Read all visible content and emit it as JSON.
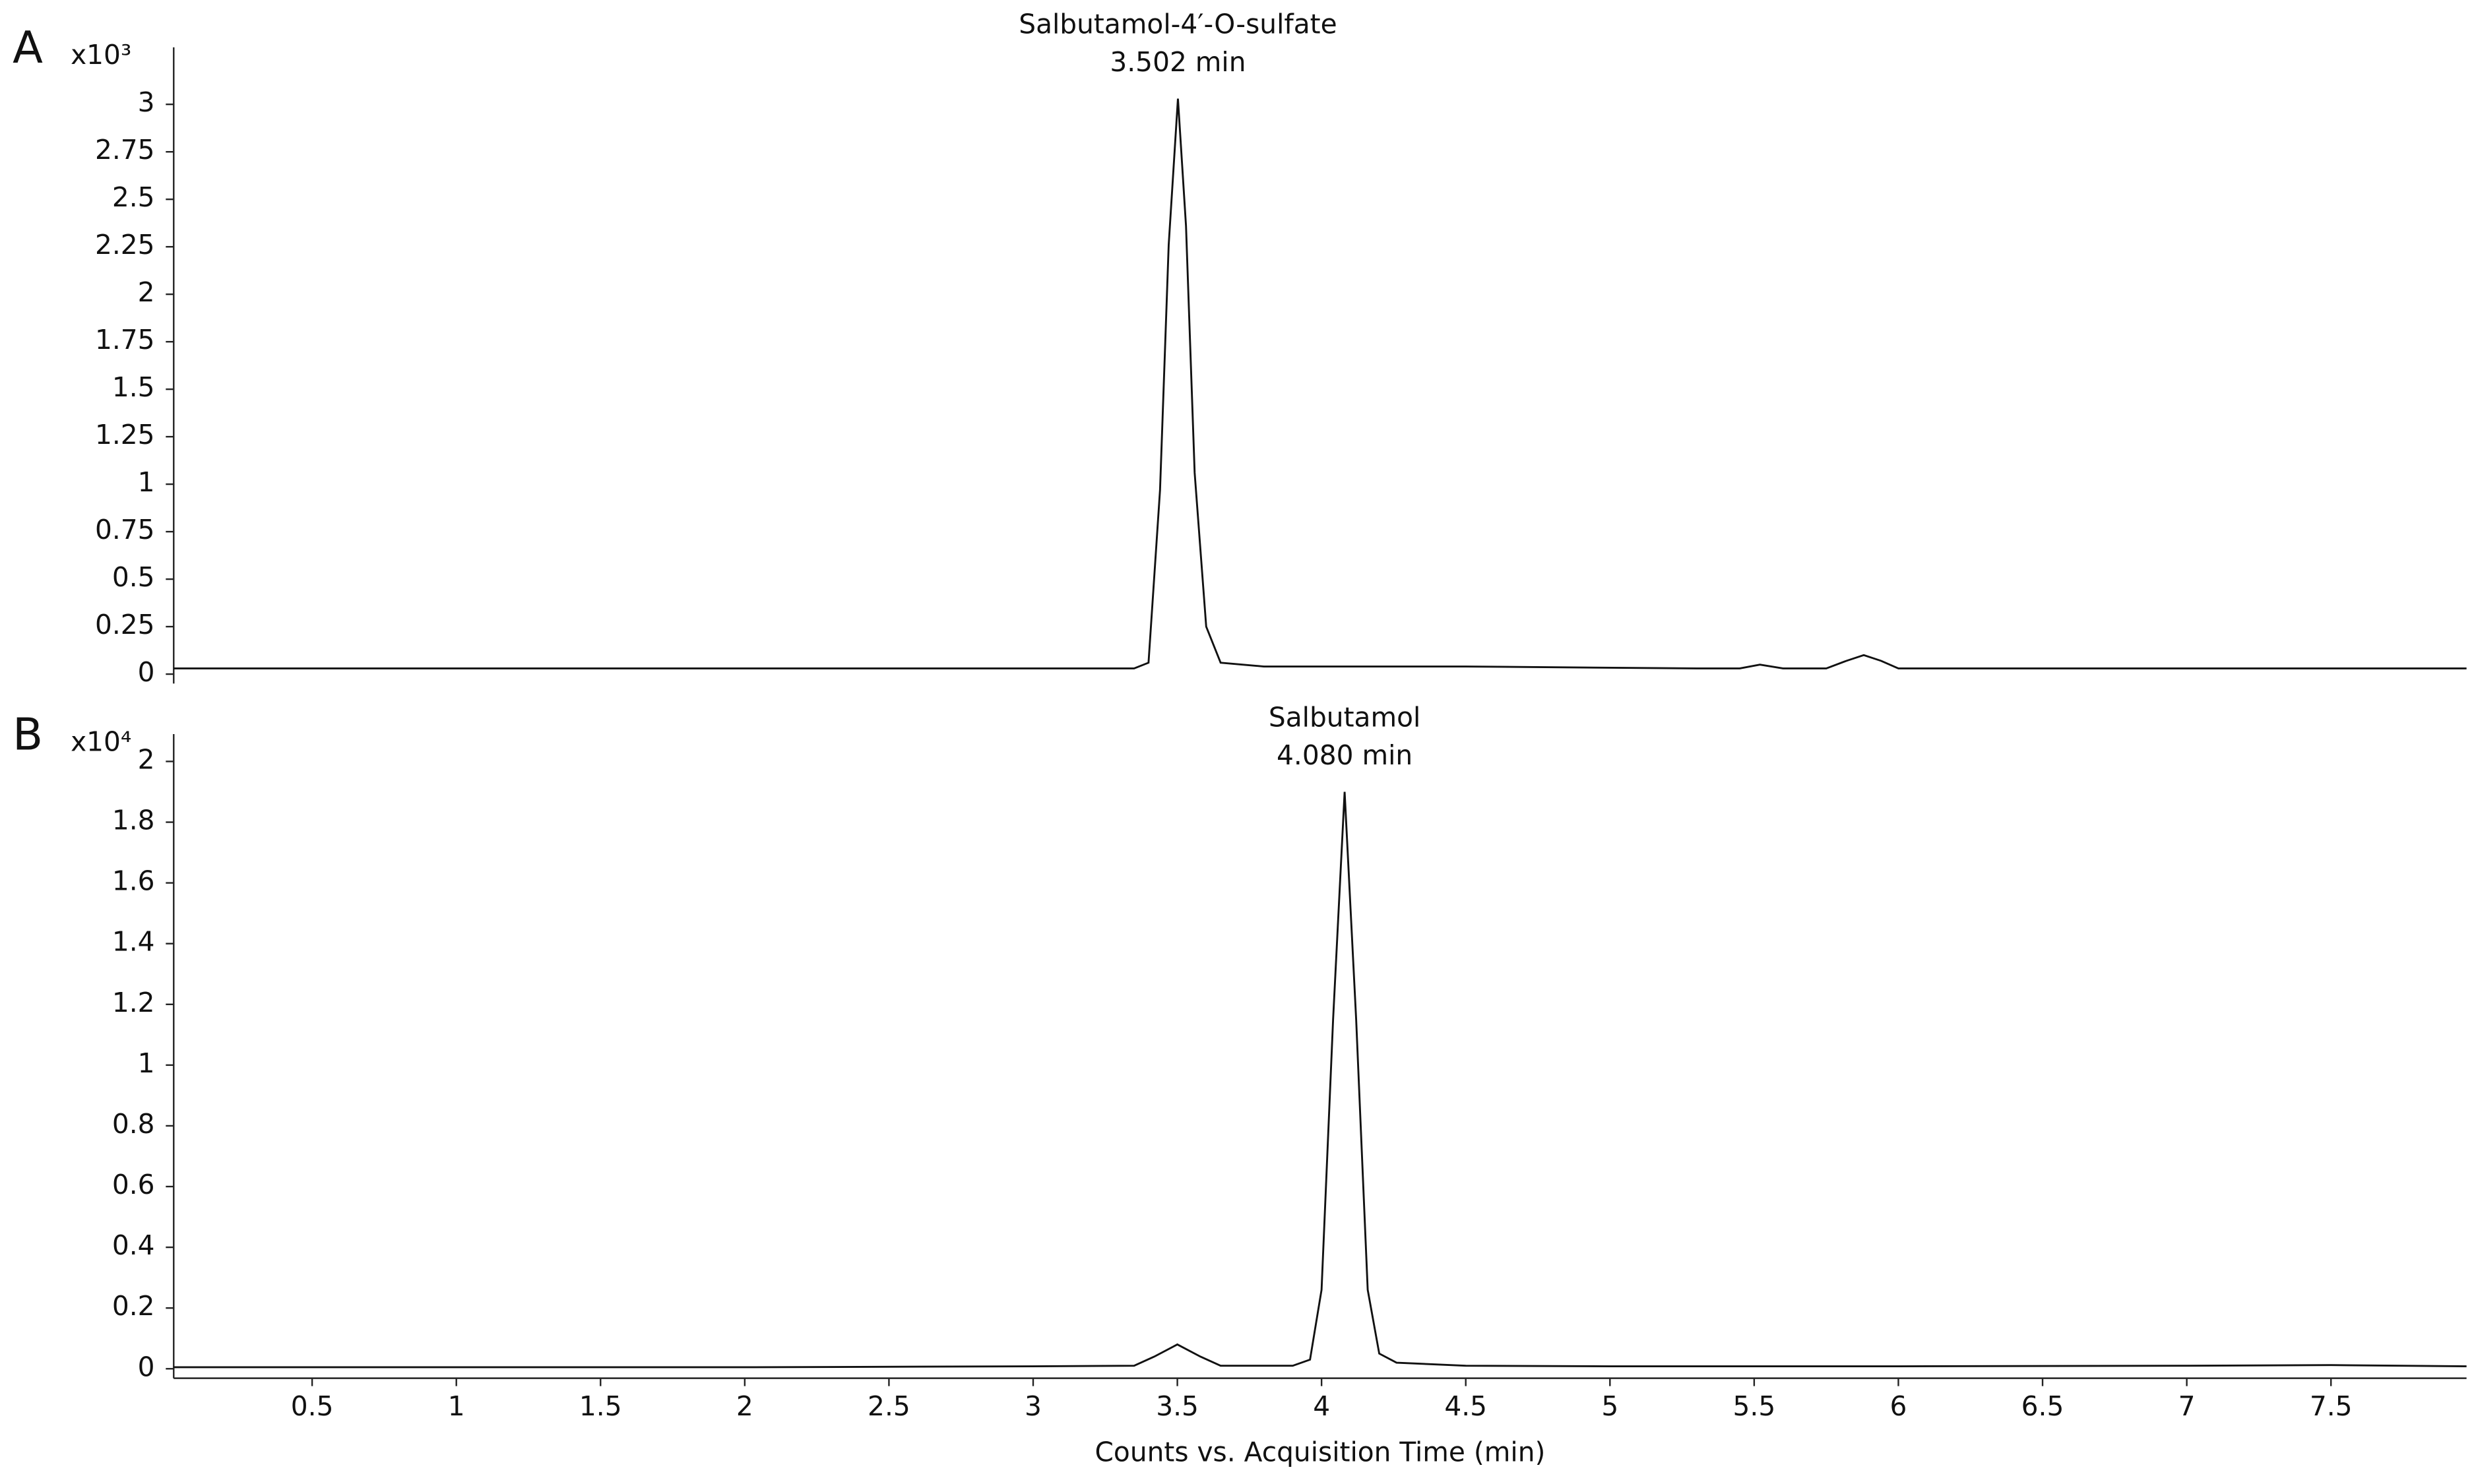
{
  "chart_data": [
    {
      "type": "line",
      "panel_label": "A",
      "y_multiplier": "x10³",
      "color": "#111111",
      "annotation": [
        "Salbutamol-4′-O-sulfate",
        "3.502 min"
      ],
      "x": [
        0.02,
        1,
        2,
        3,
        3.35,
        3.4,
        3.44,
        3.47,
        3.502,
        3.53,
        3.56,
        3.6,
        3.65,
        3.8,
        4.5,
        5.3,
        5.45,
        5.52,
        5.6,
        5.75,
        5.82,
        5.88,
        5.94,
        6.0,
        6.5,
        7,
        7.97
      ],
      "values": [
        0.03,
        0.03,
        0.03,
        0.03,
        0.03,
        0.06,
        0.97,
        2.26,
        3.03,
        2.36,
        1.06,
        0.25,
        0.06,
        0.04,
        0.04,
        0.03,
        0.03,
        0.05,
        0.03,
        0.03,
        0.07,
        0.1,
        0.07,
        0.03,
        0.03,
        0.03,
        0.03
      ],
      "xlim": [
        0.02,
        7.97
      ],
      "ylim": [
        0,
        3.3
      ],
      "yticks": [
        0,
        0.25,
        0.5,
        0.75,
        1,
        1.25,
        1.5,
        1.75,
        2,
        2.25,
        2.5,
        2.75,
        3
      ]
    },
    {
      "type": "line",
      "panel_label": "B",
      "y_multiplier": "x10⁴",
      "color": "#111111",
      "annotation": [
        "Salbutamol",
        "4.080 min"
      ],
      "x": [
        0.02,
        1,
        2,
        3,
        3.35,
        3.42,
        3.5,
        3.58,
        3.65,
        3.9,
        3.96,
        4.0,
        4.04,
        4.08,
        4.12,
        4.16,
        4.2,
        4.26,
        4.5,
        5,
        6,
        7,
        7.5,
        7.97
      ],
      "values": [
        0.005,
        0.005,
        0.005,
        0.008,
        0.01,
        0.04,
        0.08,
        0.04,
        0.01,
        0.01,
        0.03,
        0.26,
        1.15,
        1.9,
        1.15,
        0.26,
        0.05,
        0.02,
        0.01,
        0.008,
        0.008,
        0.01,
        0.012,
        0.008
      ],
      "xlim": [
        0.02,
        7.97
      ],
      "ylim": [
        0,
        2.09
      ],
      "yticks": [
        0,
        0.2,
        0.4,
        0.6,
        0.8,
        1,
        1.2,
        1.4,
        1.6,
        1.8,
        2
      ],
      "xticks": [
        0.5,
        1,
        1.5,
        2,
        2.5,
        3,
        3.5,
        4,
        4.5,
        5,
        5.5,
        6,
        6.5,
        7,
        7.5
      ],
      "x_label": "Counts vs. Acquisition Time (min)"
    }
  ]
}
